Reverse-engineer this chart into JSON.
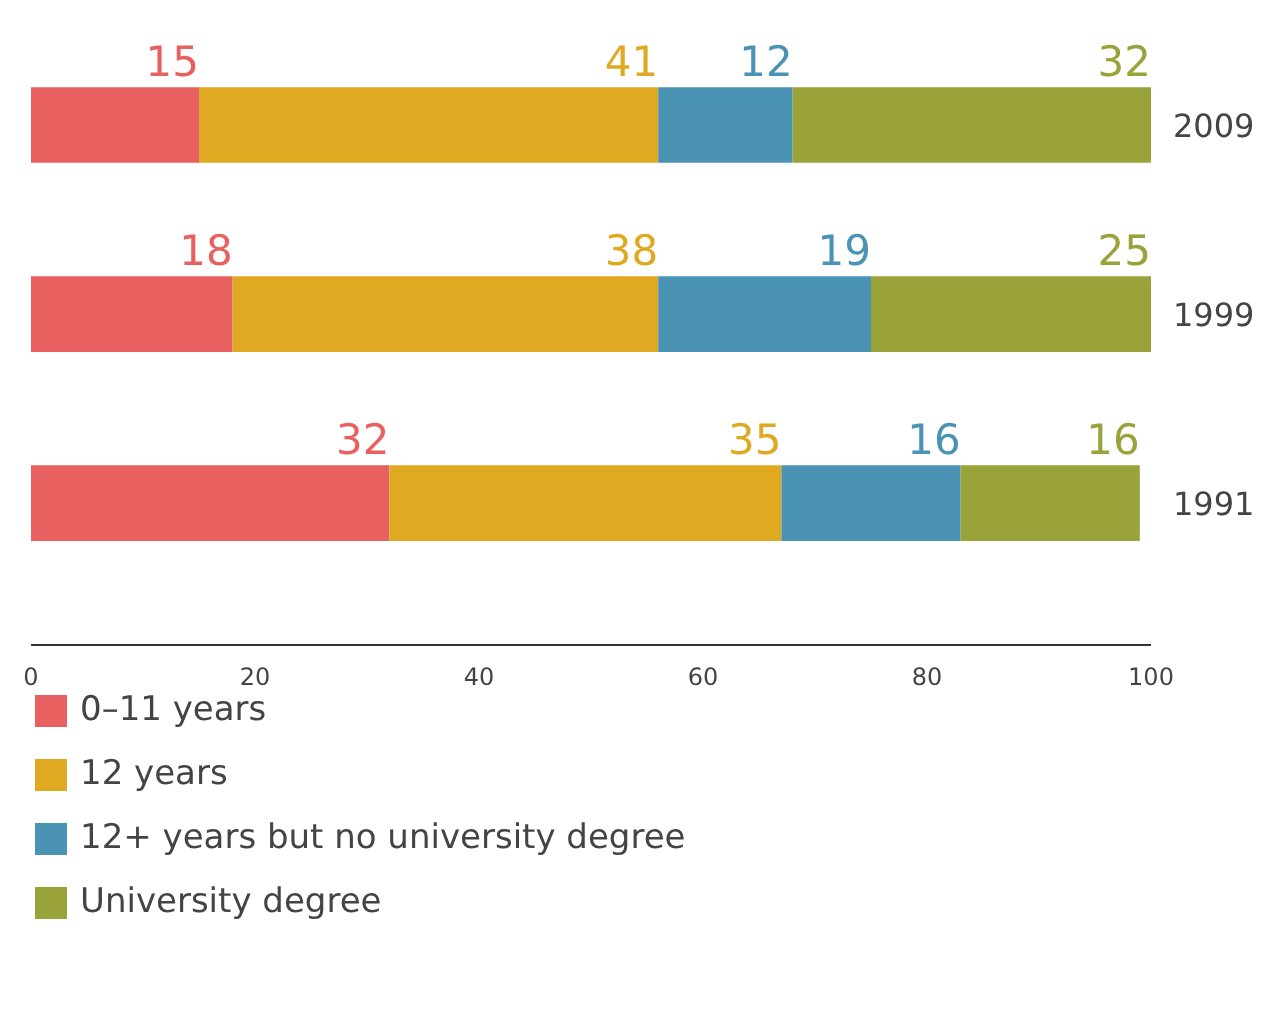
{
  "chart_data": {
    "type": "bar",
    "orientation": "horizontal",
    "stacked": true,
    "data_labels": true,
    "grid": false,
    "legend": "bottom",
    "categories": [
      "2009",
      "1999",
      "1991"
    ],
    "series": [
      {
        "name": "0–11 years",
        "color": "#e8605f",
        "values": [
          15,
          18,
          32
        ]
      },
      {
        "name": "12 years",
        "color": "#e0a922",
        "values": [
          41,
          38,
          35
        ]
      },
      {
        "name": "12+ years but no university degree",
        "color": "#4a93b5",
        "values": [
          12,
          19,
          16
        ]
      },
      {
        "name": "University degree",
        "color": "#9aa23a",
        "values": [
          32,
          25,
          16
        ]
      }
    ],
    "xlim": [
      0,
      100
    ],
    "xticks": [
      0,
      20,
      40,
      60,
      80,
      100
    ]
  }
}
